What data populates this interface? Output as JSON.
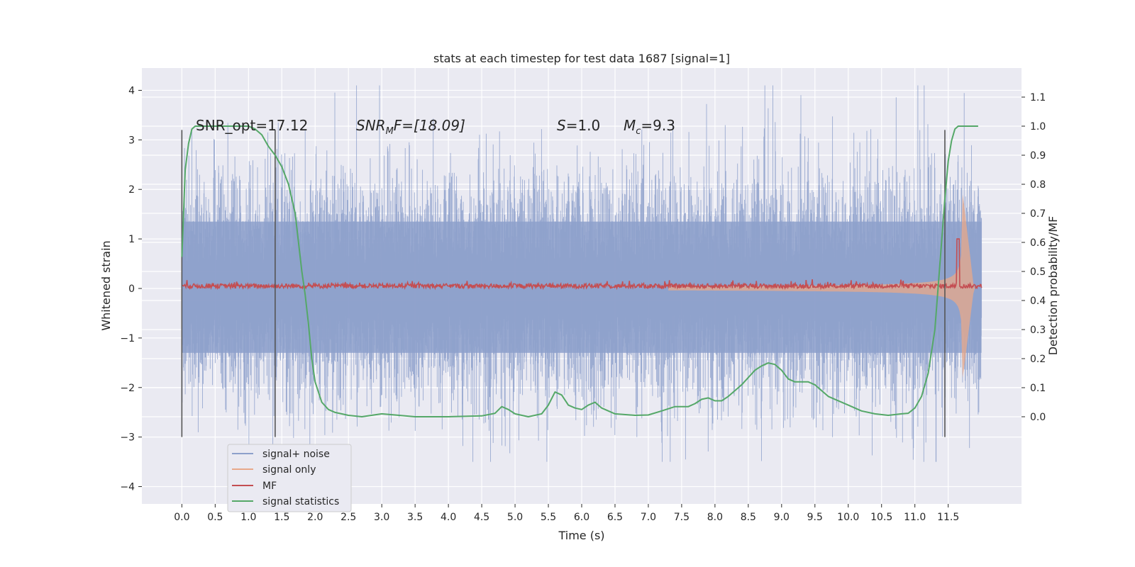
{
  "chart_data": {
    "type": "line",
    "title": "stats at each timestep for test data 1687 [signal=1]",
    "xlabel": "Time (s)",
    "ylabel": "Whitened strain",
    "ylabel_right": "Detection probability/MF",
    "xlim": [
      -0.6,
      12.6
    ],
    "ylim": [
      -4.35,
      4.45
    ],
    "ylim_right": [
      -0.3,
      1.2
    ],
    "x_ticks": [
      "0.0",
      "0.5",
      "1.0",
      "1.5",
      "2.0",
      "2.5",
      "3.0",
      "3.5",
      "4.0",
      "4.5",
      "5.0",
      "5.5",
      "6.0",
      "6.5",
      "7.0",
      "7.5",
      "8.0",
      "8.5",
      "9.0",
      "9.5",
      "10.0",
      "10.5",
      "11.0",
      "11.5"
    ],
    "y_ticks": [
      "4",
      "3",
      "2",
      "1",
      "0",
      "−1",
      "−2",
      "−3",
      "−4"
    ],
    "y_ticks_right": [
      "1.1",
      "1.0",
      "0.9",
      "0.8",
      "0.7",
      "0.6",
      "0.5",
      "0.4",
      "0.3",
      "0.2",
      "0.1",
      "0.0"
    ],
    "grid": true,
    "legend_placement": "lower-left",
    "annotations": {
      "snr_opt": "SNR_opt=17.12",
      "snr_mf_sym": "SNR",
      "snr_mf_sub": "M",
      "snr_mf_rest": "F=[18.09]",
      "s_sym": "S",
      "s_rest": "=1.0",
      "mc_sym": "M",
      "mc_sub": "c",
      "mc_rest": "=9.3"
    },
    "vertical_lines_x": [
      0.0,
      1.4,
      11.45
    ],
    "vertical_lines_ylim": [
      -3.0,
      3.2
    ],
    "series": [
      {
        "name": "signal+ noise",
        "color": "#8da0cb",
        "axis": "left",
        "description_range": [
          -3.5,
          4.1
        ],
        "x_range": [
          0.0,
          12.0
        ]
      },
      {
        "name": "signal only",
        "color": "#e8a88a",
        "axis": "left",
        "x_range": [
          0.0,
          12.0
        ],
        "amplitude_end": 1.9
      },
      {
        "name": "MF",
        "color": "#c44e52",
        "axis": "left",
        "baseline": 0.05,
        "peak": {
          "x": 11.65,
          "y": 1.0
        }
      },
      {
        "name": "signal statistics",
        "color": "#55a868",
        "axis": "right",
        "x": [
          0.0,
          0.05,
          0.1,
          0.15,
          0.2,
          0.3,
          0.5,
          0.8,
          1.0,
          1.1,
          1.2,
          1.3,
          1.4,
          1.5,
          1.6,
          1.7,
          1.75,
          1.8,
          1.85,
          1.9,
          1.95,
          2.0,
          2.1,
          2.2,
          2.3,
          2.5,
          2.7,
          3.0,
          3.2,
          3.5,
          4.0,
          4.5,
          4.7,
          4.8,
          4.9,
          5.0,
          5.2,
          5.4,
          5.5,
          5.6,
          5.7,
          5.8,
          5.9,
          6.0,
          6.1,
          6.2,
          6.3,
          6.5,
          6.8,
          7.0,
          7.2,
          7.4,
          7.6,
          7.7,
          7.8,
          7.9,
          8.0,
          8.1,
          8.2,
          8.4,
          8.6,
          8.7,
          8.8,
          8.9,
          9.0,
          9.1,
          9.2,
          9.3,
          9.4,
          9.5,
          9.6,
          9.7,
          9.8,
          10.0,
          10.2,
          10.4,
          10.6,
          10.8,
          10.9,
          11.0,
          11.1,
          11.2,
          11.3,
          11.35,
          11.4,
          11.45,
          11.5,
          11.55,
          11.6,
          11.65,
          11.7,
          11.8,
          11.9,
          11.95
        ],
        "y": [
          0.55,
          0.85,
          0.94,
          0.99,
          1.0,
          1.0,
          1.0,
          1.0,
          1.0,
          0.99,
          0.97,
          0.93,
          0.9,
          0.86,
          0.8,
          0.7,
          0.6,
          0.5,
          0.42,
          0.32,
          0.2,
          0.12,
          0.05,
          0.025,
          0.015,
          0.005,
          0.0,
          0.01,
          0.006,
          0.0,
          0.0,
          0.003,
          0.012,
          0.035,
          0.025,
          0.01,
          0.0,
          0.01,
          0.04,
          0.085,
          0.075,
          0.04,
          0.03,
          0.025,
          0.04,
          0.05,
          0.03,
          0.01,
          0.005,
          0.006,
          0.02,
          0.035,
          0.035,
          0.045,
          0.06,
          0.065,
          0.055,
          0.055,
          0.07,
          0.11,
          0.16,
          0.175,
          0.185,
          0.18,
          0.16,
          0.13,
          0.12,
          0.12,
          0.12,
          0.11,
          0.09,
          0.07,
          0.06,
          0.04,
          0.02,
          0.01,
          0.005,
          0.01,
          0.012,
          0.03,
          0.07,
          0.15,
          0.3,
          0.45,
          0.6,
          0.75,
          0.88,
          0.95,
          0.99,
          1.0,
          1.0,
          1.0,
          1.0,
          1.0
        ]
      }
    ]
  }
}
